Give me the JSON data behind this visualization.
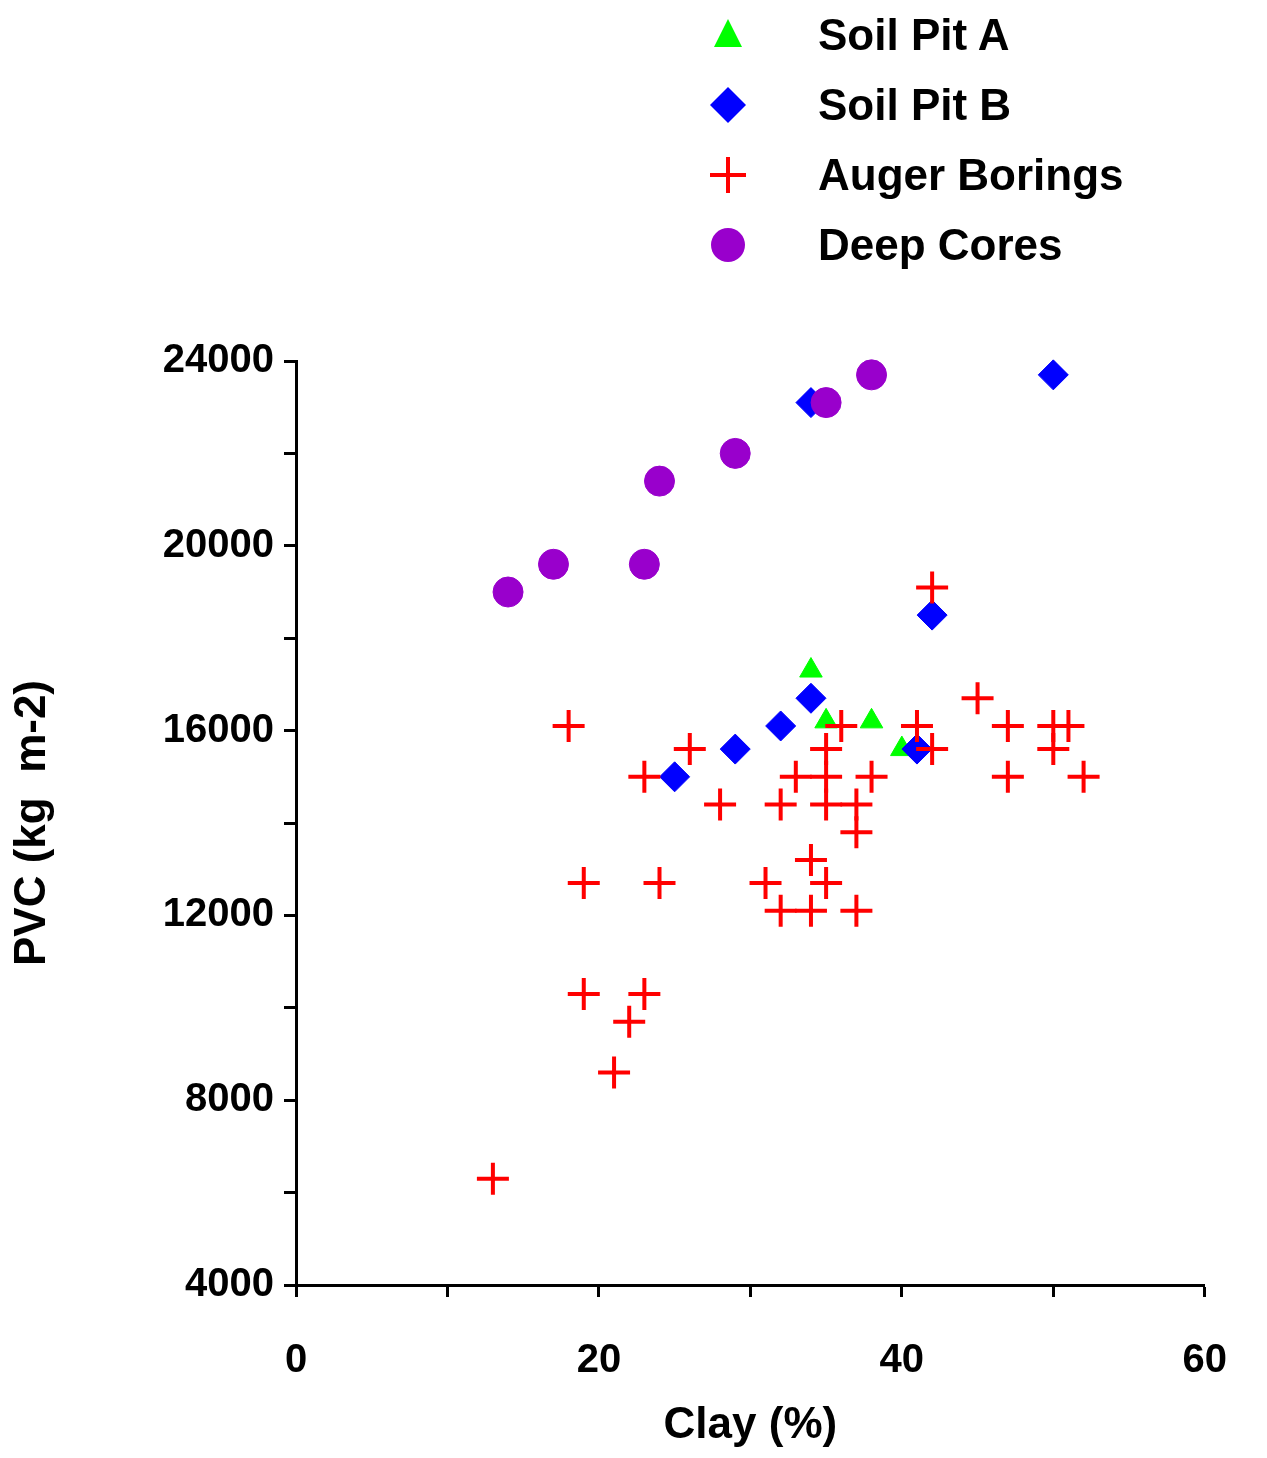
{
  "chart_data": {
    "type": "scatter",
    "xlabel": "Clay (%)",
    "ylabel": "PVC (kg  m-2)",
    "xlim": [
      0,
      60
    ],
    "xticks": [
      0,
      {
        "value": 10,
        "label": null
      },
      20,
      {
        "value": 30,
        "label": null
      },
      40,
      {
        "value": 50,
        "label": null
      },
      60
    ],
    "ylim": [
      4000,
      24000
    ],
    "yticks": [
      4000,
      {
        "value": 6000,
        "label": null
      },
      8000,
      {
        "value": 10000,
        "label": null
      },
      12000,
      {
        "value": 14000,
        "label": null
      },
      16000,
      {
        "value": 18000,
        "label": null
      },
      20000,
      {
        "value": 22000,
        "label": null
      },
      24000
    ],
    "grid": false,
    "legend": "top right",
    "series": [
      {
        "name": "Soil Pit A",
        "color": "#00ff00",
        "marker": "triangle",
        "x": [
          34,
          35,
          38,
          40
        ],
        "values": [
          17300,
          16200,
          16200,
          15600
        ]
      },
      {
        "name": "Soil Pit B",
        "color": "#0000ff",
        "marker": "diamond",
        "x": [
          25,
          29,
          32,
          34,
          41,
          42,
          34,
          50
        ],
        "values": [
          15000,
          15600,
          16100,
          16700,
          15600,
          18500,
          23100,
          23700
        ]
      },
      {
        "name": "Auger Borings",
        "color": "#ff0000",
        "marker": "cross",
        "x": [
          18,
          26,
          23,
          28,
          32,
          35,
          37,
          37,
          34,
          33,
          35,
          38,
          35,
          36,
          41,
          42,
          42,
          19,
          24,
          31,
          35,
          32,
          34,
          37,
          19,
          23,
          22,
          21,
          13,
          45,
          47,
          50,
          51,
          50,
          47,
          52
        ],
        "values": [
          16100,
          15600,
          15000,
          14400,
          14400,
          14400,
          14400,
          13800,
          13200,
          15000,
          15000,
          15000,
          15600,
          16100,
          16100,
          15600,
          19100,
          12700,
          12700,
          12700,
          12700,
          12100,
          12100,
          12100,
          10300,
          10300,
          9700,
          8600,
          6300,
          16700,
          16100,
          16100,
          16100,
          15600,
          15000,
          15000
        ]
      },
      {
        "name": "Deep Cores",
        "color": "#9900cc",
        "marker": "circle",
        "x": [
          14,
          17,
          23,
          24,
          29,
          35,
          38
        ],
        "values": [
          19000,
          19600,
          19600,
          21400,
          22000,
          23100,
          23700
        ]
      }
    ]
  }
}
